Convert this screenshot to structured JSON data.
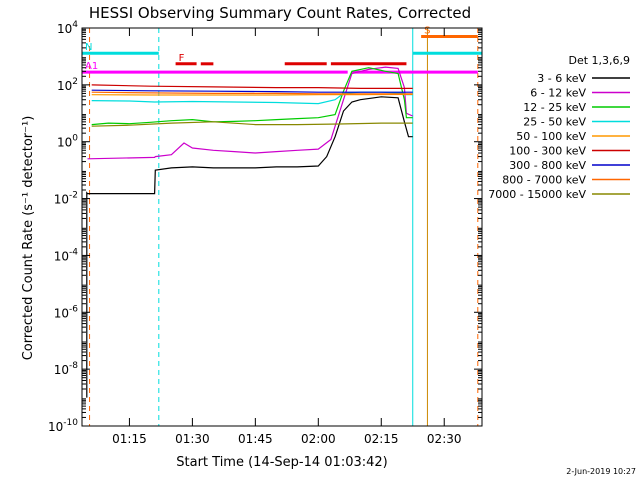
{
  "chart_data": {
    "type": "line",
    "title": "HESSI Observing Summary Count Rates, Corrected",
    "xlabel": "Start Time (14-Sep-14 01:03:42)",
    "ylabel": "Corrected Count Rate (s⁻¹ detector⁻¹)",
    "date_stamp": "2-Jun-2019 10:27",
    "legend_title": "Det 1,3,6,9",
    "legend_placement": "right",
    "y_scale": "log",
    "ylim": [
      1e-10,
      10000.0
    ],
    "xlim": [
      "01:03:42",
      "02:39:00"
    ],
    "grid": false,
    "x_ticks": [
      "01:15",
      "01:30",
      "01:45",
      "02:00",
      "02:15",
      "02:30"
    ],
    "y_ticks": [
      {
        "base": "10",
        "exp": "4",
        "value": 10000.0
      },
      {
        "base": "10",
        "exp": "2",
        "value": 100.0
      },
      {
        "base": "10",
        "exp": "0",
        "value": 1
      },
      {
        "base": "10",
        "exp": "-2",
        "value": 0.01
      },
      {
        "base": "10",
        "exp": "-4",
        "value": 0.0001
      },
      {
        "base": "10",
        "exp": "-6",
        "value": 1e-06
      },
      {
        "base": "10",
        "exp": "-8",
        "value": 1e-08
      },
      {
        "base": "10",
        "exp": "-10",
        "value": 1e-10
      }
    ],
    "series": [
      {
        "name": "3 - 6 keV",
        "color": "#000000",
        "x": [
          "01:04:50",
          "01:04:51",
          "01:05:00",
          "01:21:00",
          "01:21:10",
          "01:25:00",
          "01:30:00",
          "01:35:00",
          "01:40:00",
          "01:45:00",
          "01:50:00",
          "01:55:00",
          "02:00:00",
          "02:02:00",
          "02:04:00",
          "02:06:00",
          "02:08:00",
          "02:10:00",
          "02:15:00",
          "02:19:00",
          "02:20:30",
          "02:21:30",
          "02:22:30"
        ],
        "y": [
          1e-09,
          0.016,
          0.015,
          0.015,
          0.1,
          0.12,
          0.13,
          0.12,
          0.12,
          0.12,
          0.13,
          0.13,
          0.14,
          0.3,
          1.5,
          12,
          25,
          30,
          38,
          35,
          5,
          1.5,
          1.5
        ]
      },
      {
        "name": "6 - 12 keV",
        "color": "#cc00cc",
        "x": [
          "01:05:00",
          "01:21:00",
          "01:21:10",
          "01:25:00",
          "01:28:00",
          "01:30:00",
          "01:35:00",
          "01:40:00",
          "01:45:00",
          "01:50:00",
          "01:55:00",
          "02:00:00",
          "02:03:00",
          "02:06:00",
          "02:08:00",
          "02:12:00",
          "02:16:00",
          "02:19:00",
          "02:20:30",
          "02:21:00",
          "02:22:30"
        ],
        "y": [
          0.25,
          0.28,
          0.3,
          0.35,
          0.9,
          0.6,
          0.5,
          0.45,
          0.4,
          0.45,
          0.5,
          0.55,
          1.2,
          30,
          250,
          350,
          420,
          380,
          80,
          10,
          8
        ]
      },
      {
        "name": "12 - 25 keV",
        "color": "#00cc00",
        "x": [
          "01:06:00",
          "01:10:00",
          "01:15:00",
          "01:20:00",
          "01:25:00",
          "01:30:00",
          "01:35:00",
          "01:40:00",
          "01:45:00",
          "01:50:00",
          "01:55:00",
          "02:00:00",
          "02:04:00",
          "02:06:00",
          "02:08:00",
          "02:12:00",
          "02:16:00",
          "02:19:00",
          "02:20:30",
          "02:21:00",
          "02:22:30"
        ],
        "y": [
          4,
          4.5,
          4.3,
          4.8,
          5.5,
          6,
          5,
          5.2,
          5.5,
          6,
          6.5,
          7,
          9,
          60,
          300,
          400,
          300,
          250,
          30,
          7,
          7
        ]
      },
      {
        "name": "25 - 50 keV",
        "color": "#00dddd",
        "x": [
          "01:06:00",
          "01:15:00",
          "01:21:00",
          "01:30:00",
          "01:40:00",
          "01:50:00",
          "02:00:00",
          "02:04:00",
          "02:06:00",
          "02:10:00",
          "02:15:00",
          "02:20:30",
          "02:21:00",
          "02:22:30"
        ],
        "y": [
          28,
          27,
          25,
          26,
          25,
          24,
          22,
          30,
          50,
          55,
          55,
          50,
          45,
          45
        ]
      },
      {
        "name": "50 - 100 keV",
        "color": "#ff9900",
        "x": [
          "01:06:00",
          "01:20:00",
          "01:35:00",
          "01:50:00",
          "02:00:00",
          "02:10:00",
          "02:22:30"
        ],
        "y": [
          45,
          44,
          44,
          44,
          45,
          45,
          46
        ]
      },
      {
        "name": "100 - 300 keV",
        "color": "#cc0000",
        "x": [
          "01:06:00",
          "01:20:00",
          "01:35:00",
          "01:50:00",
          "02:00:00",
          "02:10:00",
          "02:22:30"
        ],
        "y": [
          100,
          90,
          85,
          80,
          80,
          75,
          75
        ]
      },
      {
        "name": "300 - 800 keV",
        "color": "#0000cc",
        "x": [
          "01:06:00",
          "01:20:00",
          "01:35:00",
          "01:50:00",
          "02:00:00",
          "02:10:00",
          "02:22:30"
        ],
        "y": [
          65,
          62,
          60,
          58,
          55,
          55,
          55
        ]
      },
      {
        "name": "800 - 7000 keV",
        "color": "#ff6600",
        "x": [
          "01:06:00",
          "01:20:00",
          "01:35:00",
          "01:50:00",
          "02:00:00",
          "02:10:00",
          "02:22:30"
        ],
        "y": [
          55,
          52,
          50,
          50,
          48,
          48,
          48
        ]
      },
      {
        "name": "7000 - 15000 keV",
        "color": "#888800",
        "x": [
          "01:06:00",
          "01:15:00",
          "01:25:00",
          "01:35:00",
          "01:45:00",
          "01:55:00",
          "02:05:00",
          "02:15:00",
          "02:22:30"
        ],
        "y": [
          3.5,
          3.8,
          4.5,
          5,
          4,
          4,
          4.2,
          4.5,
          4.5
        ]
      }
    ],
    "flag_bars": [
      {
        "label": "S",
        "color": "#ff6600",
        "y": 5000,
        "segments": [
          [
            "02:24:30",
            "02:38:00"
          ]
        ]
      },
      {
        "label": "N",
        "color": "#00dddd",
        "y": 1300,
        "segments": [
          [
            "01:03:42",
            "01:22:00"
          ],
          [
            "02:22:30",
            "02:39:00"
          ]
        ]
      },
      {
        "label": "F",
        "color": "#dd0000",
        "y": 550,
        "segments": [
          [
            "01:26:00",
            "01:31:00"
          ],
          [
            "01:32:00",
            "01:35:00"
          ],
          [
            "01:52:00",
            "02:02:00"
          ],
          [
            "02:03:00",
            "02:21:00"
          ]
        ]
      },
      {
        "label": "A1",
        "color": "#ff00ff",
        "y": 280,
        "segments": [
          [
            "01:03:42",
            "02:07:00"
          ],
          [
            "02:08:00",
            "02:38:00"
          ]
        ]
      }
    ],
    "vertical_lines": [
      {
        "x": "01:05:30",
        "color": "#ff6600",
        "style": "dashed"
      },
      {
        "x": "01:22:00",
        "color": "#00dddd",
        "style": "dashed"
      },
      {
        "x": "02:22:30",
        "color": "#00dddd",
        "style": "solid"
      },
      {
        "x": "02:26:00",
        "color": "#cc8800",
        "style": "solid"
      },
      {
        "x": "02:38:00",
        "color": "#ff6600",
        "style": "dashed"
      }
    ]
  }
}
